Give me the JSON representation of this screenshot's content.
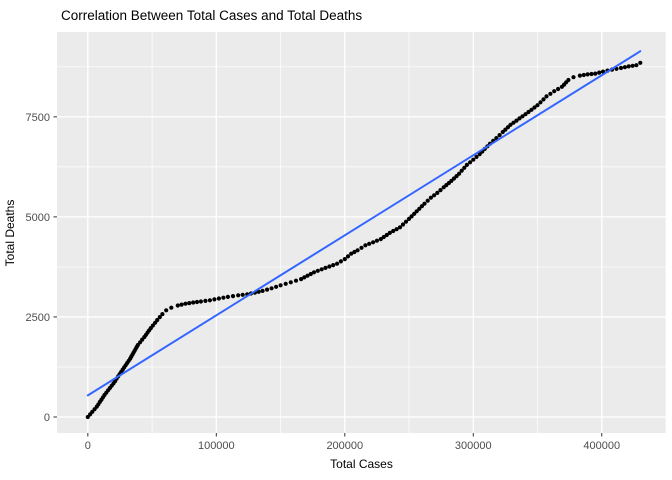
{
  "chart_data": {
    "type": "scatter",
    "title": "Correlation Between Total Cases and Total Deaths",
    "xlabel": "Total Cases",
    "ylabel": "Total Deaths",
    "legend_position": "none",
    "grid": "on",
    "panel_theme": "ggplot-grey",
    "x_axis": {
      "range": [
        -24000,
        450000
      ],
      "ticks": [
        0,
        100000,
        200000,
        300000,
        400000
      ],
      "tick_labels": [
        "0",
        "100000",
        "200000",
        "300000",
        "400000"
      ],
      "minor_ticks": [
        50000,
        150000,
        250000,
        350000,
        450000
      ]
    },
    "y_axis": {
      "range": [
        -400,
        9620
      ],
      "ticks": [
        0,
        2500,
        5000,
        7500
      ],
      "tick_labels": [
        "0",
        "2500",
        "5000",
        "7500"
      ],
      "minor_ticks": [
        1250,
        3750,
        6250,
        8750
      ]
    },
    "series": [
      {
        "name": "observations",
        "type": "points",
        "color": "#000000",
        "point_radius": 2.1,
        "anchor_points": [
          [
            0,
            0
          ],
          [
            7000,
            260
          ],
          [
            13000,
            550
          ],
          [
            20000,
            840
          ],
          [
            26000,
            1130
          ],
          [
            33000,
            1460
          ],
          [
            39000,
            1800
          ],
          [
            44000,
            2000
          ],
          [
            49000,
            2220
          ],
          [
            54000,
            2420
          ],
          [
            58000,
            2570
          ],
          [
            61000,
            2665
          ],
          [
            65000,
            2730
          ],
          [
            70000,
            2785
          ],
          [
            76000,
            2830
          ],
          [
            82000,
            2860
          ],
          [
            88000,
            2885
          ],
          [
            95000,
            2915
          ],
          [
            102000,
            2960
          ],
          [
            109000,
            3000
          ],
          [
            117000,
            3040
          ],
          [
            124000,
            3065
          ],
          [
            130000,
            3105
          ],
          [
            136000,
            3150
          ],
          [
            143000,
            3215
          ],
          [
            150000,
            3290
          ],
          [
            158000,
            3365
          ],
          [
            166000,
            3445
          ],
          [
            171000,
            3530
          ],
          [
            176000,
            3615
          ],
          [
            182000,
            3690
          ],
          [
            188000,
            3760
          ],
          [
            194000,
            3830
          ],
          [
            200000,
            3945
          ],
          [
            205000,
            4080
          ],
          [
            210000,
            4165
          ],
          [
            216000,
            4290
          ],
          [
            222000,
            4365
          ],
          [
            228000,
            4445
          ],
          [
            235000,
            4600
          ],
          [
            243000,
            4740
          ],
          [
            250000,
            4950
          ],
          [
            256000,
            5140
          ],
          [
            262000,
            5330
          ],
          [
            267000,
            5480
          ],
          [
            272000,
            5600
          ],
          [
            277000,
            5740
          ],
          [
            283000,
            5900
          ],
          [
            289000,
            6080
          ],
          [
            295000,
            6300
          ],
          [
            300000,
            6430
          ],
          [
            305000,
            6570
          ],
          [
            309000,
            6700
          ],
          [
            313000,
            6830
          ],
          [
            318000,
            6970
          ],
          [
            323000,
            7120
          ],
          [
            329000,
            7300
          ],
          [
            336000,
            7460
          ],
          [
            343000,
            7620
          ],
          [
            350000,
            7790
          ],
          [
            357000,
            8010
          ],
          [
            363000,
            8140
          ],
          [
            369000,
            8250
          ],
          [
            374000,
            8420
          ],
          [
            378000,
            8490
          ],
          [
            383000,
            8530
          ],
          [
            389000,
            8560
          ],
          [
            395000,
            8580
          ],
          [
            401000,
            8630
          ],
          [
            408000,
            8680
          ],
          [
            415000,
            8720
          ],
          [
            421000,
            8760
          ],
          [
            427000,
            8790
          ],
          [
            430000,
            8850
          ]
        ]
      },
      {
        "name": "linear-trend",
        "type": "line",
        "color": "#3366FF",
        "stroke_width": 2,
        "endpoints": [
          [
            0,
            540
          ],
          [
            430000,
            9140
          ]
        ]
      }
    ],
    "colors": {
      "panel_bg": "#EBEBEB",
      "grid_major": "#FFFFFF",
      "grid_minor": "#FFFFFF",
      "tick_mark": "#333333",
      "tick_label": "#4D4D4D",
      "title_text": "#000000"
    }
  }
}
